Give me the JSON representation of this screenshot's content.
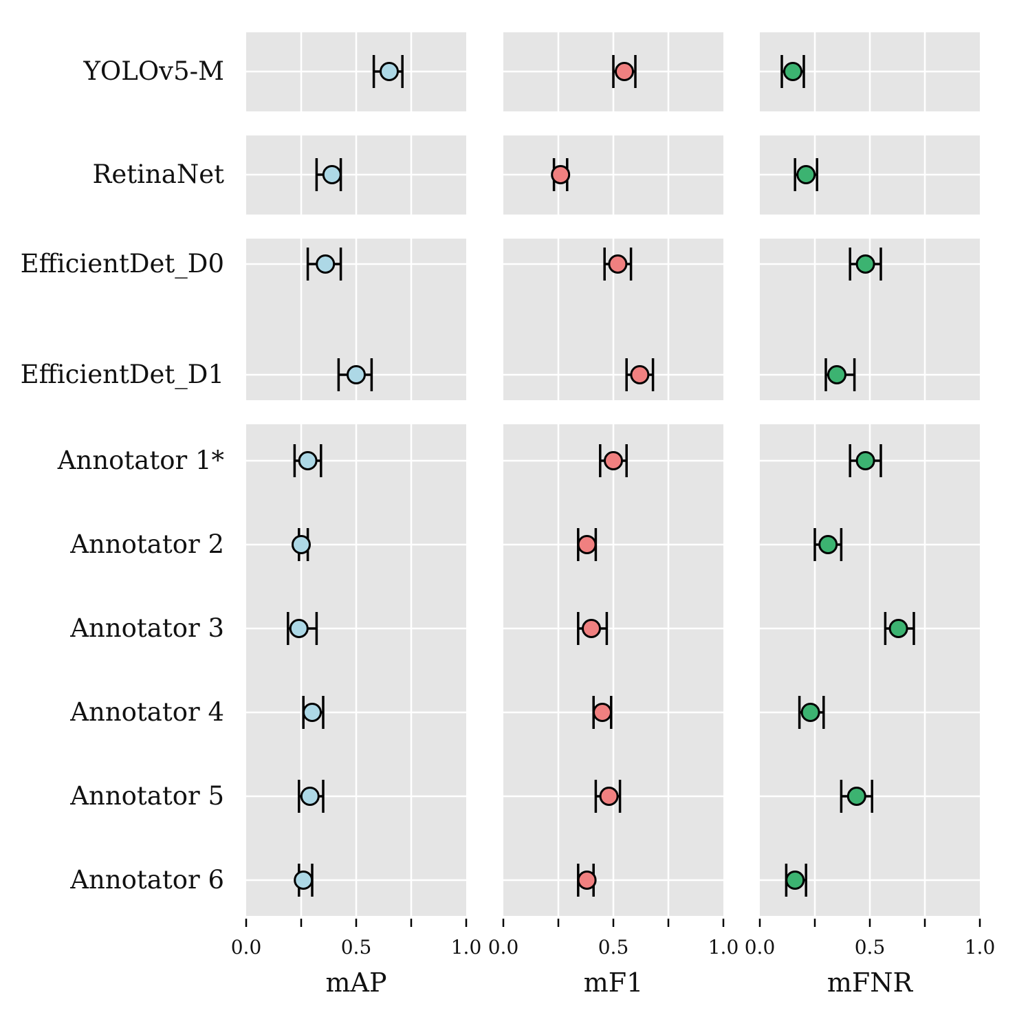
{
  "chart_data": {
    "type": "errorbar",
    "row_labels": [
      "YOLOv5-M",
      "RetinaNet",
      "EfficientDet_D0",
      "EfficientDet_D1",
      "Annotator 1*",
      "Annotator 2",
      "Annotator 3",
      "Annotator 4",
      "Annotator 5",
      "Annotator 6"
    ],
    "row_display_labels": [
      "YOLOv5-M",
      "RetinaNet",
      "EfficientDet_D0",
      "EfficientDet_D1",
      "Annotator 1*",
      "Annotator 2",
      "Annotator 3",
      "Annotator 4",
      "Annotator 5",
      "Annotator 6"
    ],
    "xlim": [
      0.0,
      1.0
    ],
    "grid": true,
    "panels": [
      {
        "metric": "mAP",
        "xlabel": "mAP",
        "tick_labels": [
          "0.0",
          "0.5",
          "1.0"
        ],
        "color": "#add8e6",
        "points": [
          {
            "label": "YOLOv5-M",
            "value": 0.65,
            "low": 0.58,
            "high": 0.71
          },
          {
            "label": "RetinaNet",
            "value": 0.39,
            "low": 0.32,
            "high": 0.43
          },
          {
            "label": "EfficientDet_D0",
            "value": 0.36,
            "low": 0.28,
            "high": 0.43
          },
          {
            "label": "EfficientDet_D1",
            "value": 0.5,
            "low": 0.42,
            "high": 0.57
          },
          {
            "label": "Annotator 1*",
            "value": 0.28,
            "low": 0.22,
            "high": 0.34
          },
          {
            "label": "Annotator 2",
            "value": 0.25,
            "low": 0.24,
            "high": 0.28
          },
          {
            "label": "Annotator 3",
            "value": 0.24,
            "low": 0.19,
            "high": 0.32
          },
          {
            "label": "Annotator 4",
            "value": 0.3,
            "low": 0.26,
            "high": 0.35
          },
          {
            "label": "Annotator 5",
            "value": 0.29,
            "low": 0.24,
            "high": 0.35
          },
          {
            "label": "Annotator 6",
            "value": 0.26,
            "low": 0.24,
            "high": 0.3
          }
        ]
      },
      {
        "metric": "mF1",
        "xlabel": "mF1",
        "tick_labels": [
          "0.0",
          "0.5",
          "1.0"
        ],
        "color": "#f08080",
        "points": [
          {
            "label": "YOLOv5-M",
            "value": 0.55,
            "low": 0.5,
            "high": 0.6
          },
          {
            "label": "RetinaNet",
            "value": 0.26,
            "low": 0.23,
            "high": 0.29
          },
          {
            "label": "EfficientDet_D0",
            "value": 0.52,
            "low": 0.46,
            "high": 0.58
          },
          {
            "label": "EfficientDet_D1",
            "value": 0.62,
            "low": 0.56,
            "high": 0.68
          },
          {
            "label": "Annotator 1*",
            "value": 0.5,
            "low": 0.44,
            "high": 0.56
          },
          {
            "label": "Annotator 2",
            "value": 0.38,
            "low": 0.34,
            "high": 0.42
          },
          {
            "label": "Annotator 3",
            "value": 0.4,
            "low": 0.34,
            "high": 0.47
          },
          {
            "label": "Annotator 4",
            "value": 0.45,
            "low": 0.41,
            "high": 0.49
          },
          {
            "label": "Annotator 5",
            "value": 0.48,
            "low": 0.42,
            "high": 0.53
          },
          {
            "label": "Annotator 6",
            "value": 0.38,
            "low": 0.34,
            "high": 0.41
          }
        ]
      },
      {
        "metric": "mFNR",
        "xlabel": "mFNR",
        "tick_labels": [
          "0.0",
          "0.5",
          "1.0"
        ],
        "color": "#3cb371",
        "points": [
          {
            "label": "YOLOv5-M",
            "value": 0.15,
            "low": 0.1,
            "high": 0.2
          },
          {
            "label": "RetinaNet",
            "value": 0.21,
            "low": 0.16,
            "high": 0.26
          },
          {
            "label": "EfficientDet_D0",
            "value": 0.48,
            "low": 0.41,
            "high": 0.55
          },
          {
            "label": "EfficientDet_D1",
            "value": 0.35,
            "low": 0.3,
            "high": 0.43
          },
          {
            "label": "Annotator 1*",
            "value": 0.48,
            "low": 0.41,
            "high": 0.55
          },
          {
            "label": "Annotator 2",
            "value": 0.31,
            "low": 0.25,
            "high": 0.37
          },
          {
            "label": "Annotator 3",
            "value": 0.63,
            "low": 0.57,
            "high": 0.7
          },
          {
            "label": "Annotator 4",
            "value": 0.23,
            "low": 0.18,
            "high": 0.29
          },
          {
            "label": "Annotator 5",
            "value": 0.44,
            "low": 0.37,
            "high": 0.51
          },
          {
            "label": "Annotator 6",
            "value": 0.16,
            "low": 0.12,
            "high": 0.21
          }
        ]
      }
    ]
  }
}
